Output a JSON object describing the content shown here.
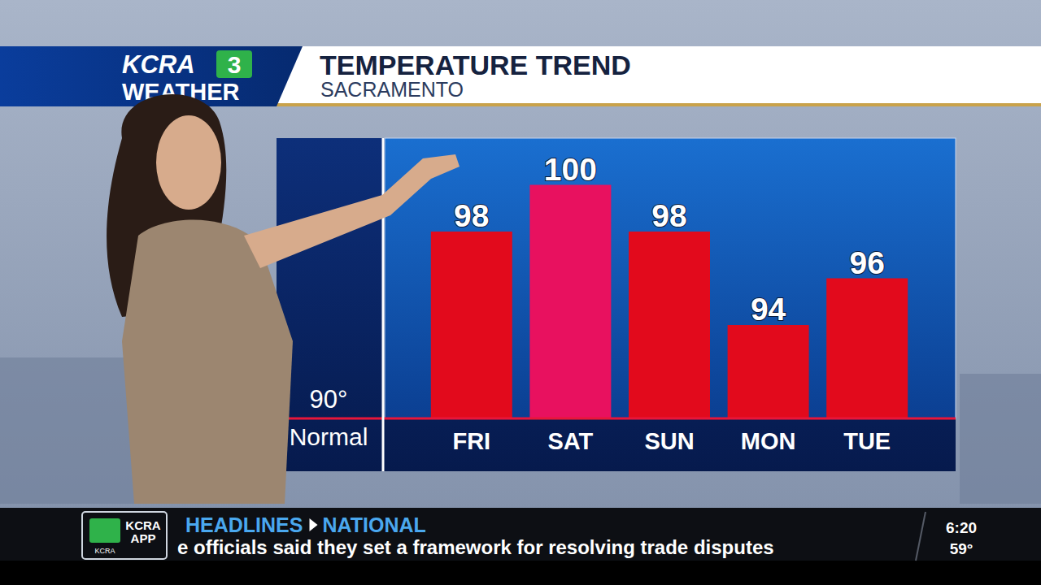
{
  "chart_data": {
    "type": "bar",
    "title": "TEMPERATURE TREND",
    "subtitle": "SACRAMENTO",
    "categories": [
      "FRI",
      "SAT",
      "SUN",
      "MON",
      "TUE"
    ],
    "values": [
      98,
      100,
      98,
      94,
      96
    ],
    "colors": [
      "#e20a1c",
      "#e8115f",
      "#e20a1c",
      "#e20a1c",
      "#e20a1c"
    ],
    "ylim": [
      90,
      102
    ],
    "annotations": [
      {
        "value": 90,
        "label": "90°",
        "text": "Normal"
      }
    ],
    "data_labels": true,
    "tick_labels": "x",
    "grid": false
  },
  "broadcast": {
    "logo_top": "KCRA",
    "logo_number": "3",
    "logo_bottom": "WEATHER",
    "ticker_section": "HEADLINES",
    "ticker_category": "NATIONAL",
    "ticker_text": "e officials said they set a framework for resolving trade disputes",
    "app_top": "KCRA",
    "app_middle": "APP",
    "app_small": "KCRA",
    "time": "6:20",
    "temperature": "59°"
  }
}
